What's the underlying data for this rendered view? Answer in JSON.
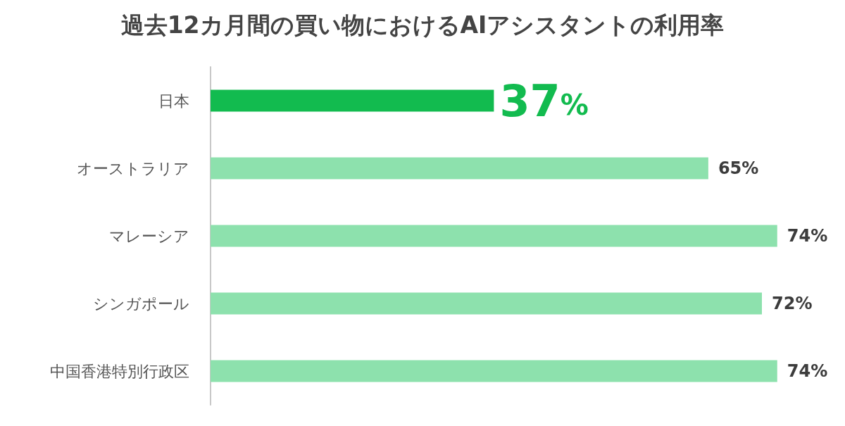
{
  "chart_data": {
    "type": "bar",
    "orientation": "horizontal",
    "title": "過去12カ月間の買い物におけるAIアシスタントの利用率",
    "categories": [
      "日本",
      "オーストラリア",
      "マレーシア",
      "シンガポール",
      "中国香港特別行政区"
    ],
    "values": [
      37,
      65,
      74,
      72,
      74
    ],
    "colors": [
      "#12bb4f",
      "#8de1ad",
      "#8de1ad",
      "#8de1ad",
      "#8de1ad"
    ],
    "value_labels": [
      "37%",
      "65%",
      "74%",
      "72%",
      "74%"
    ]
  }
}
